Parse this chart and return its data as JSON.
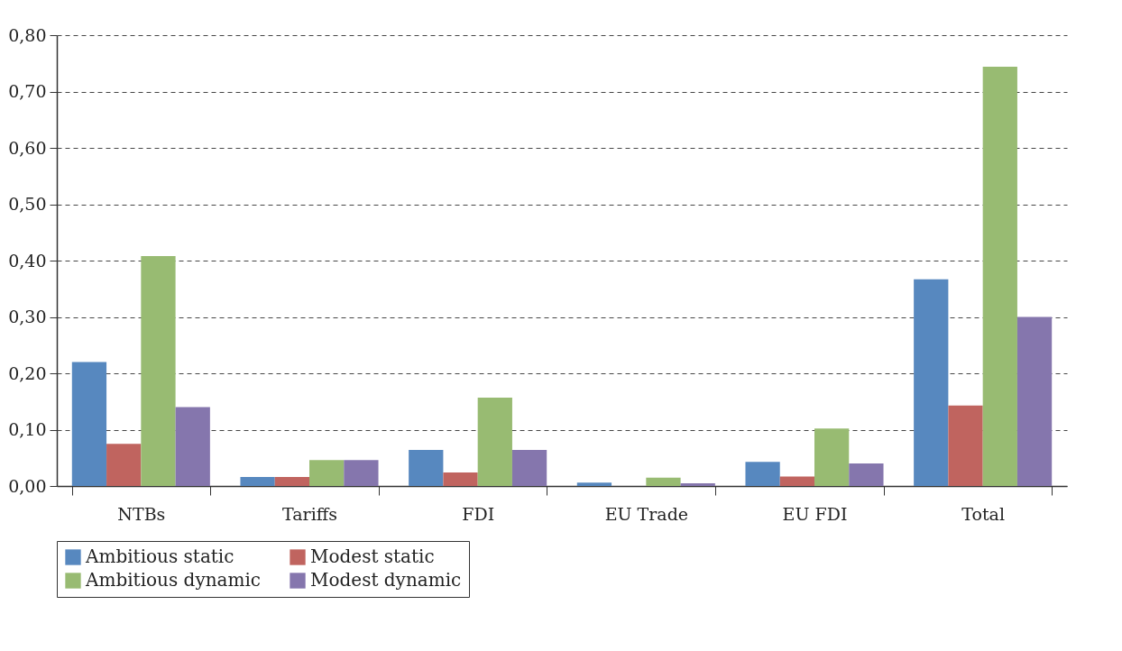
{
  "chart_data": {
    "type": "bar",
    "categories": [
      "NTBs",
      "Tariffs",
      "FDI",
      "EU Trade",
      "EU FDI",
      "Total"
    ],
    "series": [
      {
        "name": "Ambitious static",
        "color": "#5788bf",
        "values": [
          0.22,
          0.016,
          0.064,
          0.006,
          0.043,
          0.367
        ]
      },
      {
        "name": "Modest static",
        "color": "#c0645f",
        "values": [
          0.075,
          0.016,
          0.024,
          0,
          0.017,
          0.143
        ]
      },
      {
        "name": "Ambitious dynamic",
        "color": "#98bb72",
        "values": [
          0.408,
          0.046,
          0.157,
          0.015,
          0.102,
          0.744
        ]
      },
      {
        "name": "Modest dynamic",
        "color": "#8576ad",
        "values": [
          0.14,
          0.046,
          0.064,
          0.005,
          0.04,
          0.3
        ]
      }
    ],
    "ylim": [
      0,
      0.8
    ],
    "yticks": [
      {
        "value": 0,
        "label": "0,00"
      },
      {
        "value": 0.1,
        "label": "0,10"
      },
      {
        "value": 0.2,
        "label": "0,20"
      },
      {
        "value": 0.3,
        "label": "0,30"
      },
      {
        "value": 0.4,
        "label": "0,40"
      },
      {
        "value": 0.5,
        "label": "0,50"
      },
      {
        "value": 0.6,
        "label": "0,60"
      },
      {
        "value": 0.7,
        "label": "0,70"
      },
      {
        "value": 0.8,
        "label": "0,80"
      }
    ],
    "grid": "y",
    "legend": "bottom"
  }
}
